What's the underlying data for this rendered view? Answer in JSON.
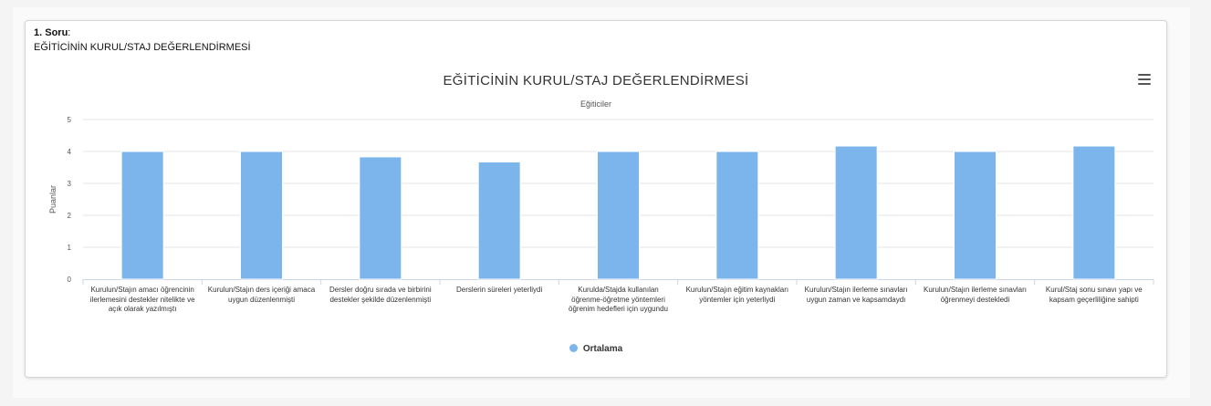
{
  "question": {
    "number": "1. Soru",
    "colon": ":",
    "text": "EĞİTİCİNİN KURUL/STAJ DEĞERLENDİRMESİ"
  },
  "menu_icon": "hamburger-menu-icon",
  "colors": {
    "bar": "#7cb5ec",
    "grid": "#e6e6e6",
    "axis": "#ccd6eb"
  },
  "chart_data": {
    "type": "bar",
    "title": "EĞİTİCİNİN KURUL/STAJ DEĞERLENDİRMESİ",
    "subtitle": "Eğiticiler",
    "xlabel": "",
    "ylabel": "Puanlar",
    "ylim": [
      0,
      5
    ],
    "yticks": [
      "0",
      "1",
      "2",
      "3",
      "4",
      "5"
    ],
    "grid": true,
    "legend_position": "bottom-center",
    "categories": [
      "Kurulun/Stajın amacı öğrencinin ilerlemesini destekler nitelikte ve açık olarak yazılmıştı",
      "Kurulun/Stajın ders içeriği amaca uygun düzenlenmişti",
      "Dersler doğru sırada ve birbirini destekler şekilde düzenlenmişti",
      "Derslerin süreleri yeterliydi",
      "Kurulda/Stajda kullanılan öğrenme-öğretme yöntemleri öğrenim hedefleri için uygundu",
      "Kurulun/Stajın eğitim kaynakları yöntemler için yeterliydi",
      "Kurulun/Stajın ilerleme sınavları uygun zaman ve kapsamdaydı",
      "Kurulun/Stajın ilerleme sınavları öğrenmeyi destekledi",
      "Kurul/Staj sonu sınavı yapı ve kapsam geçerliliğine sahipti"
    ],
    "series": [
      {
        "name": "Ortalama",
        "values": [
          4.0,
          4.0,
          3.83,
          3.67,
          4.0,
          4.0,
          4.17,
          4.0,
          4.17
        ]
      }
    ]
  }
}
